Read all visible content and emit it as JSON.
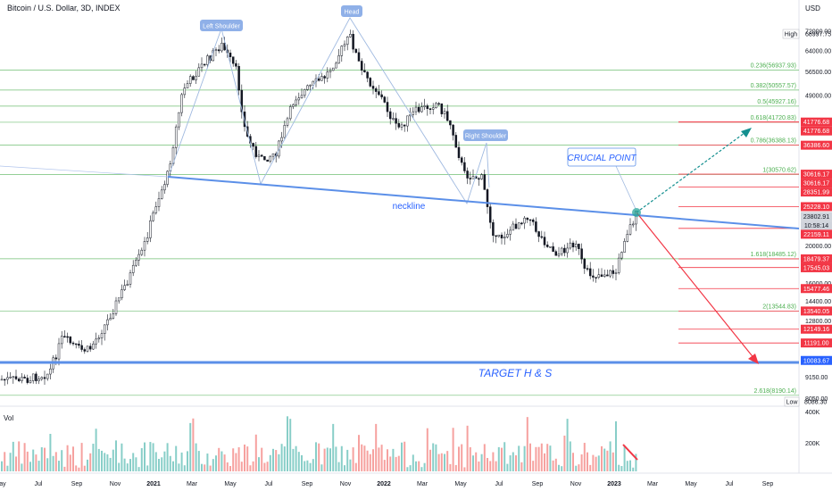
{
  "header": {
    "title": "Bitcoin / U.S. Dollar, 3D, INDEX"
  },
  "chart_data": {
    "type": "candlestick",
    "title": "Bitcoin / U.S. Dollar, 3D, INDEX",
    "y_axis": {
      "unit": "USD",
      "scale": "log",
      "ticks": [
        "72000.00",
        "64000.00",
        "56500.00",
        "49000.00",
        "20000.00",
        "16000.00",
        "14400.00",
        "12800.00",
        "9150.00",
        "8050.00"
      ]
    },
    "x_axis": {
      "ticks": [
        "May",
        "Jul",
        "Sep",
        "Nov",
        "2021",
        "Mar",
        "May",
        "Jul",
        "Sep",
        "Nov",
        "2022",
        "Mar",
        "May",
        "Jul",
        "Sep",
        "Nov",
        "2023",
        "Mar",
        "May",
        "Jul",
        "Sep"
      ]
    },
    "price_badges": [
      {
        "label": "High",
        "value": "68997.75"
      },
      {
        "label": "Low",
        "value": "8086.30"
      }
    ],
    "right_labels": [
      {
        "value": "41776.68",
        "color": "#f23645"
      },
      {
        "value": "41776.68",
        "color": "#f23645"
      },
      {
        "value": "36386.60",
        "color": "#f23645"
      },
      {
        "value": "30616.17",
        "color": "#f23645"
      },
      {
        "value": "30616.17",
        "color": "#f23645"
      },
      {
        "value": "28351.99",
        "color": "#f23645"
      },
      {
        "value": "25228.10",
        "color": "#f23645"
      },
      {
        "value": "23802.91",
        "color": "#131722"
      },
      {
        "value": "10:58:14",
        "color": "#131722"
      },
      {
        "value": "22159.11",
        "color": "#f23645"
      },
      {
        "value": "18479.37",
        "color": "#f23645"
      },
      {
        "value": "17545.03",
        "color": "#f23645"
      },
      {
        "value": "15477.46",
        "color": "#f23645"
      },
      {
        "value": "13540.05",
        "color": "#f23645"
      },
      {
        "value": "12149.16",
        "color": "#f23645"
      },
      {
        "value": "11191.00",
        "color": "#f23645"
      },
      {
        "value": "10083.67",
        "color": "#2962ff"
      }
    ],
    "fib_levels": [
      {
        "label": "0.236(56937.93)"
      },
      {
        "label": "0.382(50557.57)"
      },
      {
        "label": "0.5(45927.16)"
      },
      {
        "label": "0.618(41720.83)"
      },
      {
        "label": "0.786(36388.13)"
      },
      {
        "label": "1(30570.62)"
      },
      {
        "label": "1.618(18485.12)"
      },
      {
        "label": "2(13544.83)"
      },
      {
        "label": "2.618(8190.14)"
      }
    ],
    "annotations": {
      "left_shoulder": "Left Shoulder",
      "head": "Head",
      "right_shoulder": "Right Shoulder",
      "crucial_point": "CRUCIAL POINT",
      "neckline": "neckline",
      "target": "TARGET H & S"
    },
    "volume": {
      "label": "Vol",
      "ticks": [
        "400K",
        "200K"
      ]
    }
  }
}
